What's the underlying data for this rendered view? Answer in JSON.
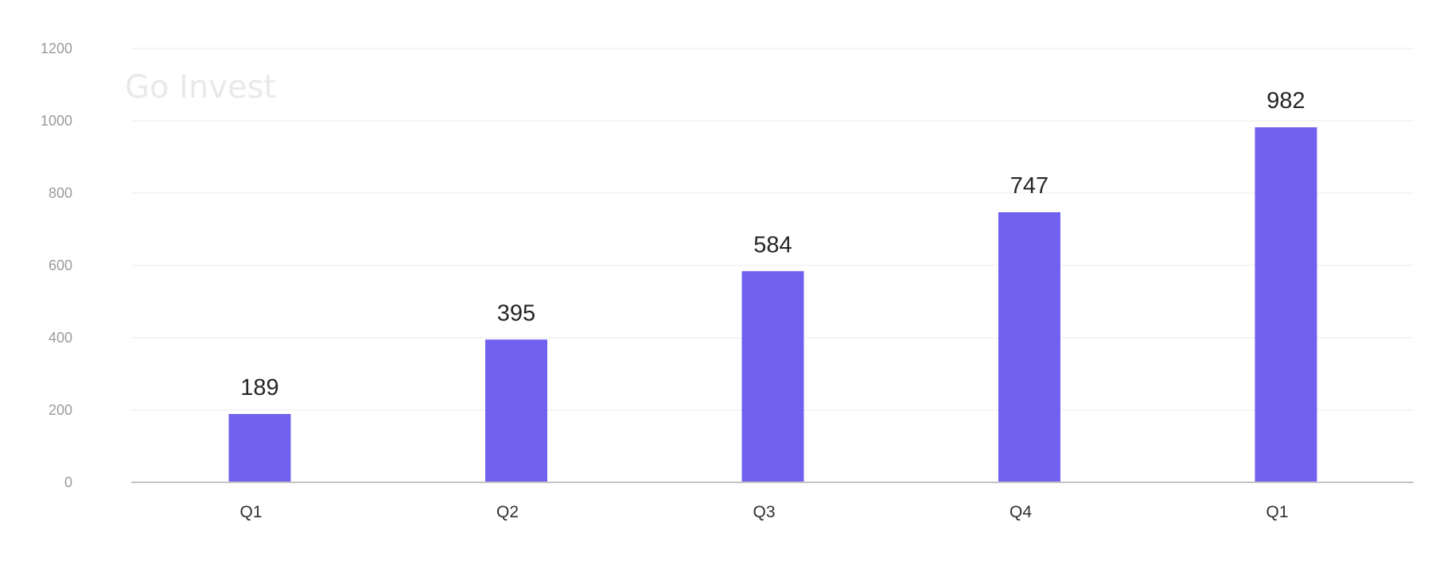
{
  "brand": {
    "watermark_text": "Go Invest"
  },
  "colors": {
    "bar": "#7061ee",
    "gridline": "#ebebeb",
    "axis_line": "#c4c4c4"
  },
  "chart_data": {
    "type": "bar",
    "title": "",
    "xlabel": "",
    "ylabel": "",
    "categories": [
      "Q1",
      "Q2",
      "Q3",
      "Q4",
      "Q1"
    ],
    "values": [
      189,
      395,
      584,
      747,
      982
    ],
    "ylim": [
      0,
      1200
    ],
    "yticks": [
      0,
      200,
      400,
      600,
      800,
      1000,
      1200
    ],
    "grid": true,
    "legend": "none",
    "data_labels": [
      "189",
      "395",
      "584",
      "747",
      "982"
    ]
  }
}
